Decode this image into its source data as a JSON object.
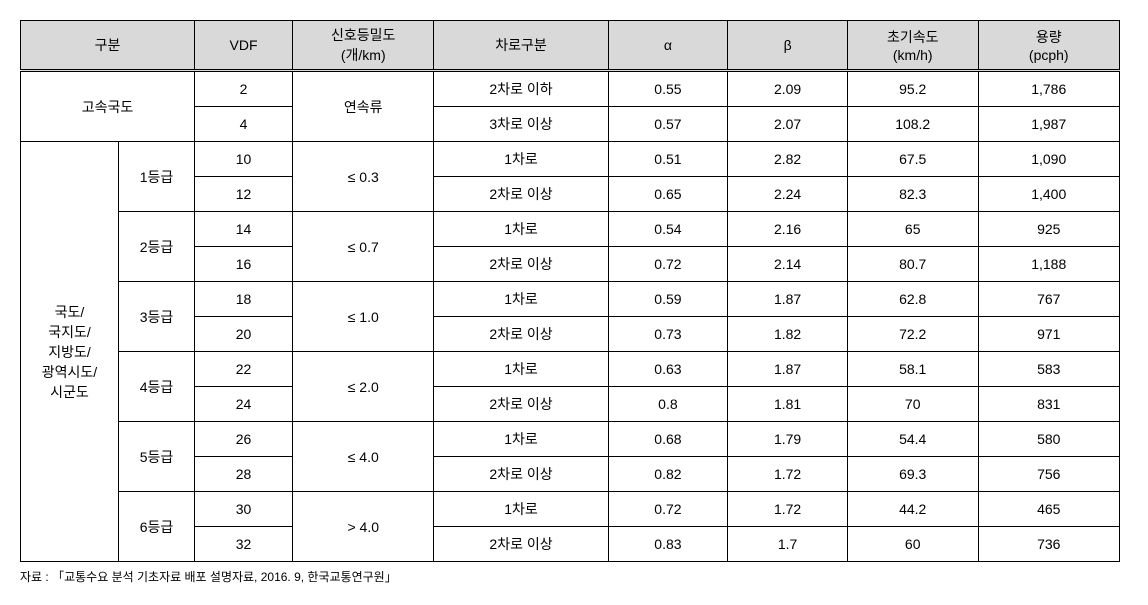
{
  "headers": {
    "gubun": "구분",
    "vdf": "VDF",
    "signal": "신호등밀도\n(개/km)",
    "lane": "차로구분",
    "alpha": "α",
    "beta": "β",
    "speed": "초기속도\n(km/h)",
    "capacity": "용량\n(pcph)"
  },
  "group1": {
    "label": "고속국도",
    "signal": "연속류",
    "rows": [
      {
        "vdf": "2",
        "lane": "2차로 이하",
        "alpha": "0.55",
        "beta": "2.09",
        "speed": "95.2",
        "cap": "1,786"
      },
      {
        "vdf": "4",
        "lane": "3차로 이상",
        "alpha": "0.57",
        "beta": "2.07",
        "speed": "108.2",
        "cap": "1,987"
      }
    ]
  },
  "group2": {
    "label": "국도/\n국지도/\n지방도/\n광역시도/\n시군도",
    "grades": [
      {
        "grade": "1등급",
        "signal": "≤ 0.3",
        "rows": [
          {
            "vdf": "10",
            "lane": "1차로",
            "alpha": "0.51",
            "beta": "2.82",
            "speed": "67.5",
            "cap": "1,090"
          },
          {
            "vdf": "12",
            "lane": "2차로 이상",
            "alpha": "0.65",
            "beta": "2.24",
            "speed": "82.3",
            "cap": "1,400"
          }
        ]
      },
      {
        "grade": "2등급",
        "signal": "≤ 0.7",
        "rows": [
          {
            "vdf": "14",
            "lane": "1차로",
            "alpha": "0.54",
            "beta": "2.16",
            "speed": "65",
            "cap": "925"
          },
          {
            "vdf": "16",
            "lane": "2차로 이상",
            "alpha": "0.72",
            "beta": "2.14",
            "speed": "80.7",
            "cap": "1,188"
          }
        ]
      },
      {
        "grade": "3등급",
        "signal": "≤ 1.0",
        "rows": [
          {
            "vdf": "18",
            "lane": "1차로",
            "alpha": "0.59",
            "beta": "1.87",
            "speed": "62.8",
            "cap": "767"
          },
          {
            "vdf": "20",
            "lane": "2차로 이상",
            "alpha": "0.73",
            "beta": "1.82",
            "speed": "72.2",
            "cap": "971"
          }
        ]
      },
      {
        "grade": "4등급",
        "signal": "≤ 2.0",
        "rows": [
          {
            "vdf": "22",
            "lane": "1차로",
            "alpha": "0.63",
            "beta": "1.87",
            "speed": "58.1",
            "cap": "583"
          },
          {
            "vdf": "24",
            "lane": "2차로 이상",
            "alpha": "0.8",
            "beta": "1.81",
            "speed": "70",
            "cap": "831"
          }
        ]
      },
      {
        "grade": "5등급",
        "signal": "≤ 4.0",
        "rows": [
          {
            "vdf": "26",
            "lane": "1차로",
            "alpha": "0.68",
            "beta": "1.79",
            "speed": "54.4",
            "cap": "580"
          },
          {
            "vdf": "28",
            "lane": "2차로 이상",
            "alpha": "0.82",
            "beta": "1.72",
            "speed": "69.3",
            "cap": "756"
          }
        ]
      },
      {
        "grade": "6등급",
        "signal": "> 4.0",
        "rows": [
          {
            "vdf": "30",
            "lane": "1차로",
            "alpha": "0.72",
            "beta": "1.72",
            "speed": "44.2",
            "cap": "465"
          },
          {
            "vdf": "32",
            "lane": "2차로 이상",
            "alpha": "0.83",
            "beta": "1.7",
            "speed": "60",
            "cap": "736"
          }
        ]
      }
    ]
  },
  "source": "자료 : 「교통수요 분석 기초자료 배포 설명자료, 2016. 9, 한국교통연구원」"
}
